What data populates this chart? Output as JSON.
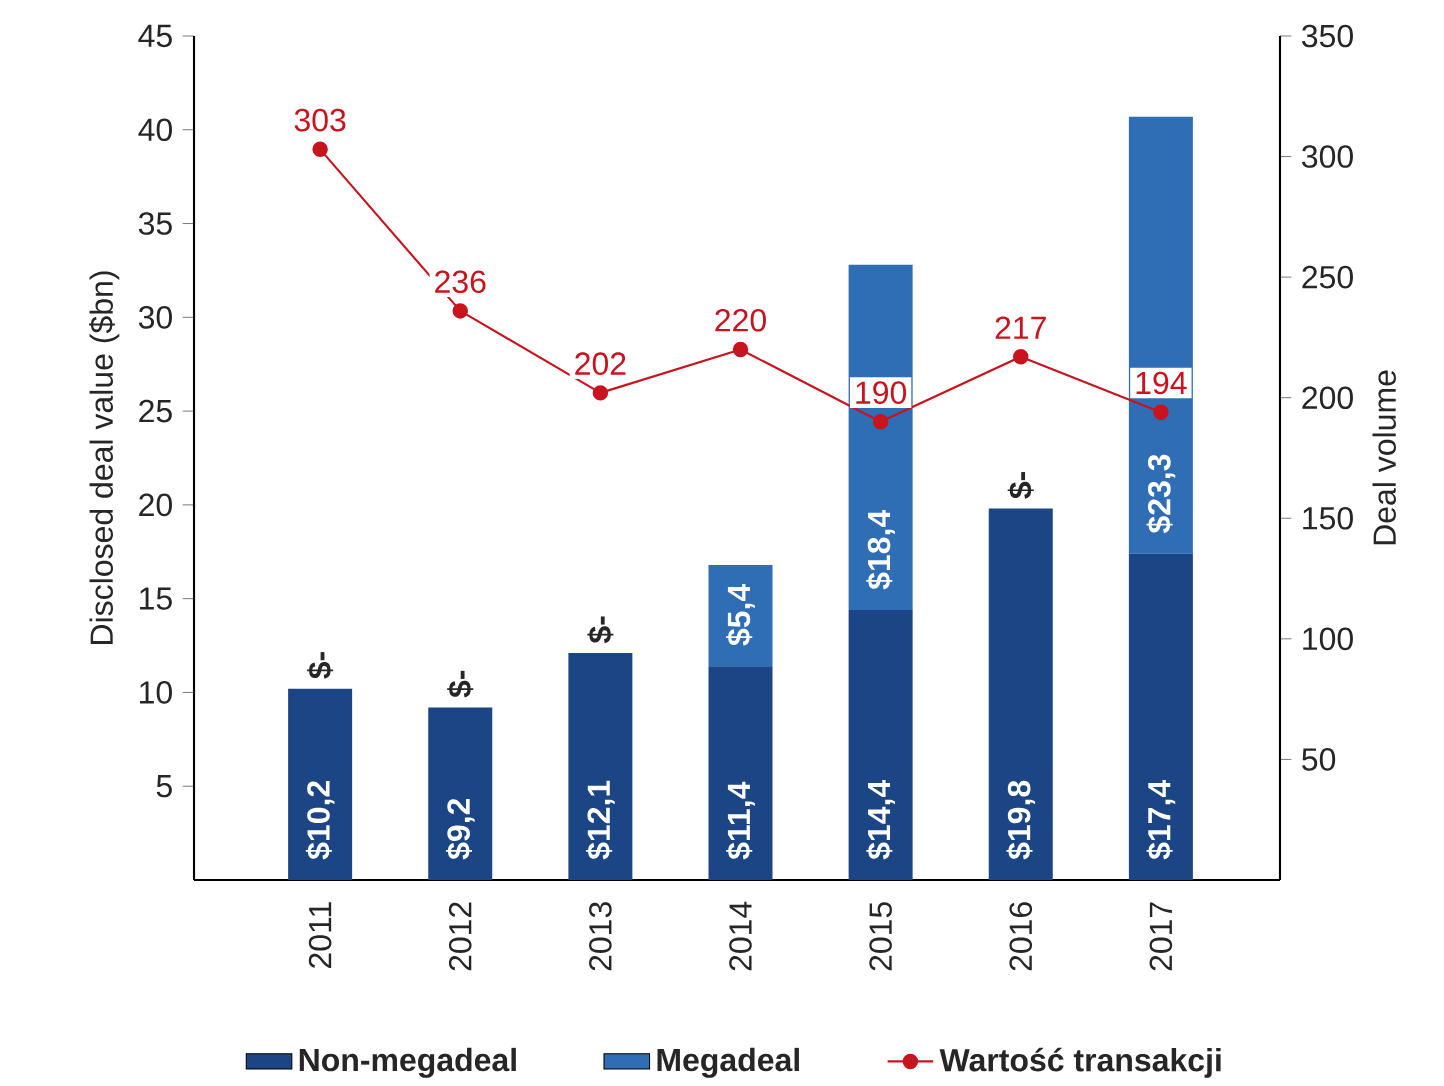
{
  "chart_data": {
    "type": "bar",
    "stacked": true,
    "ylabel": "Disclosed deal value ($bn)",
    "y2label": "Deal volume",
    "categories": [
      "2011",
      "2012",
      "2013",
      "2014",
      "2015",
      "2016",
      "2017"
    ],
    "series": [
      {
        "name": "Non-megadeal",
        "color": "#1b4584",
        "values": [
          10.2,
          9.2,
          12.1,
          11.4,
          14.4,
          19.8,
          17.4
        ],
        "value_labels": [
          "$10,2",
          "$9,2",
          "$12,1",
          "$11,4",
          "$14,4",
          "$19,8",
          "$17,4"
        ]
      },
      {
        "name": "Megadeal",
        "color": "#2f6db5",
        "values": [
          0,
          0,
          0,
          5.4,
          18.4,
          0,
          23.3
        ],
        "value_labels": [
          "$-",
          "$-",
          "$-",
          "$5,4",
          "$18,4",
          "$-",
          "$23,3"
        ]
      },
      {
        "name": "Wartość transakcji",
        "type": "line",
        "axis": "y2",
        "color": "#c8141e",
        "marker": "circle",
        "values": [
          303,
          236,
          202,
          220,
          190,
          217,
          194
        ],
        "value_labels": [
          "303",
          "236",
          "202",
          "220",
          "190",
          "217",
          "194"
        ]
      }
    ],
    "ylim": [
      0,
      45
    ],
    "yticks": [
      5,
      10,
      15,
      20,
      25,
      30,
      35,
      40,
      45
    ],
    "y2lim": [
      0,
      350
    ],
    "y2ticks": [
      50,
      100,
      150,
      200,
      250,
      300,
      350
    ],
    "legend": "bottom"
  }
}
